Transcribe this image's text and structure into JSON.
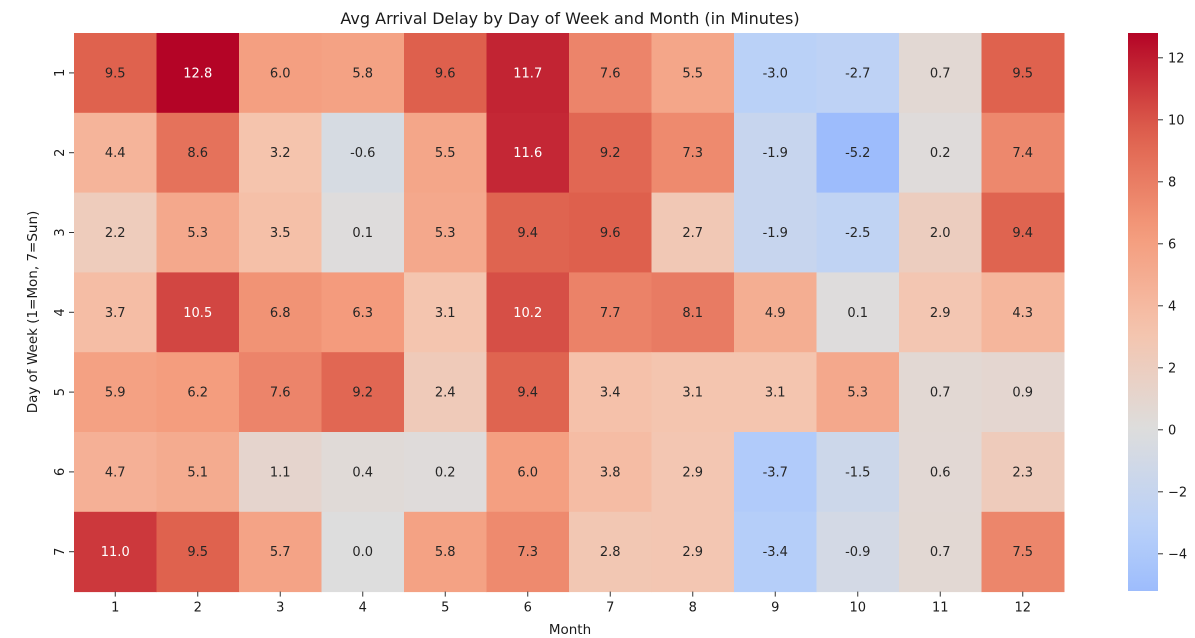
{
  "chart_data": {
    "type": "heatmap",
    "title": "Avg Arrival Delay by Day of Week and Month (in Minutes)",
    "xlabel": "Month",
    "ylabel": "Day of Week (1=Mon, 7=Sun)",
    "x_categories": [
      "1",
      "2",
      "3",
      "4",
      "5",
      "6",
      "7",
      "8",
      "9",
      "10",
      "11",
      "12"
    ],
    "y_categories": [
      "1",
      "2",
      "3",
      "4",
      "5",
      "6",
      "7"
    ],
    "values": [
      [
        9.5,
        12.8,
        6.0,
        5.8,
        9.6,
        11.7,
        7.6,
        5.5,
        -3.0,
        -2.7,
        0.7,
        9.5
      ],
      [
        4.4,
        8.6,
        3.2,
        -0.6,
        5.5,
        11.6,
        9.2,
        7.3,
        -1.9,
        -5.2,
        0.2,
        7.4
      ],
      [
        2.2,
        5.3,
        3.5,
        0.1,
        5.3,
        9.4,
        9.6,
        2.7,
        -1.9,
        -2.5,
        2.0,
        9.4
      ],
      [
        3.7,
        10.5,
        6.8,
        6.3,
        3.1,
        10.2,
        7.7,
        8.1,
        4.9,
        0.1,
        2.9,
        4.3
      ],
      [
        5.9,
        6.2,
        7.6,
        9.2,
        2.4,
        9.4,
        3.4,
        3.1,
        3.1,
        5.3,
        0.7,
        0.9
      ],
      [
        4.7,
        5.1,
        1.1,
        0.4,
        0.2,
        6.0,
        3.8,
        2.9,
        -3.7,
        -1.5,
        0.6,
        2.3
      ],
      [
        11.0,
        9.5,
        5.7,
        0.0,
        5.8,
        7.3,
        2.8,
        2.9,
        -3.4,
        -0.9,
        0.7,
        7.5
      ]
    ],
    "colormap": "coolwarm",
    "center": 0,
    "vmin": -5.2,
    "vmax": 12.8,
    "colorbar": {
      "position": "right",
      "ticks": [
        "-4",
        "-2",
        "0",
        "2",
        "4",
        "6",
        "8",
        "10",
        "12"
      ]
    },
    "annotations": "cell values shown with 1 decimal",
    "grid": false
  }
}
